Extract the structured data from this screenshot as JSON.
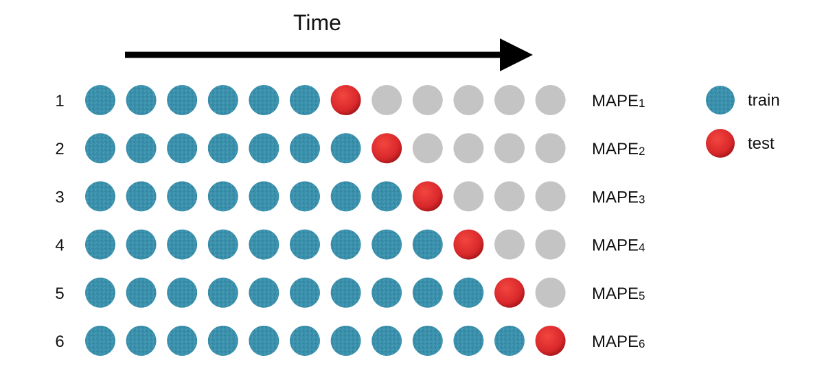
{
  "title": "Time",
  "colors": {
    "train": "#3a8fab",
    "test": "#d9282b",
    "unused": "#c4c4c4",
    "arrow": "#000000"
  },
  "folds": [
    {
      "label": "1",
      "metric": "MAPE",
      "subscript": "1",
      "train_count": 6,
      "test_count": 1,
      "unused_count": 5
    },
    {
      "label": "2",
      "metric": "MAPE",
      "subscript": "2",
      "train_count": 7,
      "test_count": 1,
      "unused_count": 4
    },
    {
      "label": "3",
      "metric": "MAPE",
      "subscript": "3",
      "train_count": 8,
      "test_count": 1,
      "unused_count": 3
    },
    {
      "label": "4",
      "metric": "MAPE",
      "subscript": "4",
      "train_count": 9,
      "test_count": 1,
      "unused_count": 2
    },
    {
      "label": "5",
      "metric": "MAPE",
      "subscript": "5",
      "train_count": 10,
      "test_count": 1,
      "unused_count": 1
    },
    {
      "label": "6",
      "metric": "MAPE",
      "subscript": "6",
      "train_count": 11,
      "test_count": 1,
      "unused_count": 0
    }
  ],
  "legend": [
    {
      "key": "train",
      "label": "train"
    },
    {
      "key": "test",
      "label": "test"
    }
  ]
}
